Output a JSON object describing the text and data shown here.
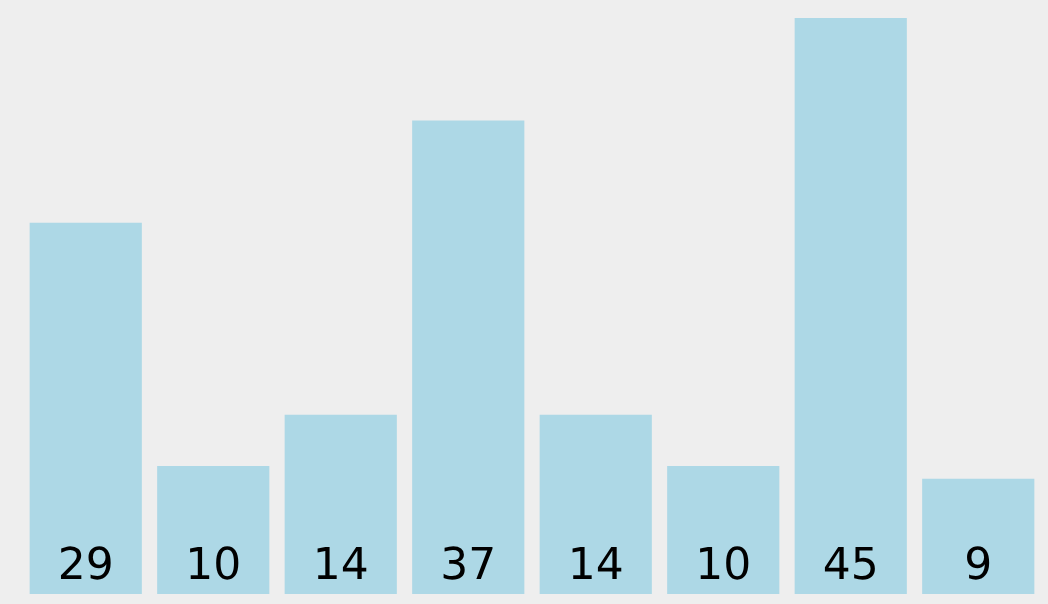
{
  "chart_data": {
    "type": "bar",
    "categories": [
      null,
      null,
      null,
      null,
      null,
      null,
      null,
      null
    ],
    "values": [
      29,
      10,
      14,
      37,
      14,
      10,
      45,
      9
    ],
    "color": "#add8e6",
    "data_labels": true
  }
}
